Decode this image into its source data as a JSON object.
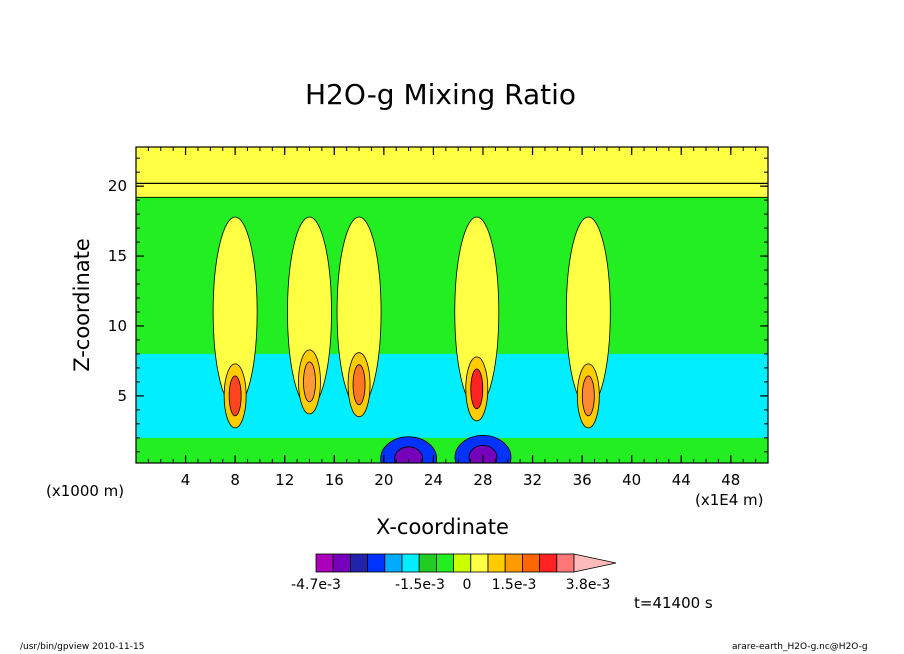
{
  "chart_data": {
    "type": "heatmap",
    "title": "H2O-g Mixing Ratio",
    "xlabel": "X-coordinate",
    "ylabel": "Z-coordinate",
    "x_unit_left": "(x1000 m)",
    "x_unit_right": "(x1E4 m)",
    "xlim": [
      0,
      51
    ],
    "ylim": [
      0.2,
      22.8
    ],
    "x_ticks": [
      4,
      8,
      12,
      16,
      20,
      24,
      28,
      32,
      36,
      40,
      44,
      48
    ],
    "y_ticks": [
      5,
      10,
      15,
      20
    ],
    "color_levels": [
      "#aa00bb",
      "#7700bb",
      "#2222aa",
      "#0033ff",
      "#00aaff",
      "#00eeff",
      "#22cc22",
      "#22ee22",
      "#ccff00",
      "#ffff44",
      "#ffcc00",
      "#ff9900",
      "#ff6600",
      "#ff2222",
      "#ff7777",
      "#ffbbbb"
    ],
    "colorbar_labels": [
      "-4.7e-3",
      "-1.5e-3",
      "0",
      "1.5e-3",
      "3.8e-3"
    ],
    "time_label": "t=41400 s",
    "plumes": [
      {
        "x": 8.0,
        "z": 5.0,
        "peak": "#ff4422"
      },
      {
        "x": 14.0,
        "z": 6.0,
        "peak": "#ff9933"
      },
      {
        "x": 18.0,
        "z": 5.8,
        "peak": "#ff7722"
      },
      {
        "x": 27.5,
        "z": 5.5,
        "peak": "#ff2222"
      },
      {
        "x": 36.5,
        "z": 5.0,
        "peak": "#ff8833"
      }
    ],
    "deep_minima": [
      {
        "x": 22.0,
        "z": 0.5
      },
      {
        "x": 28.0,
        "z": 0.6
      }
    ]
  },
  "footer": {
    "left": "/usr/bin/gpview  2010-11-15",
    "right": "arare-earth_H2O-g.nc@H2O-g"
  }
}
